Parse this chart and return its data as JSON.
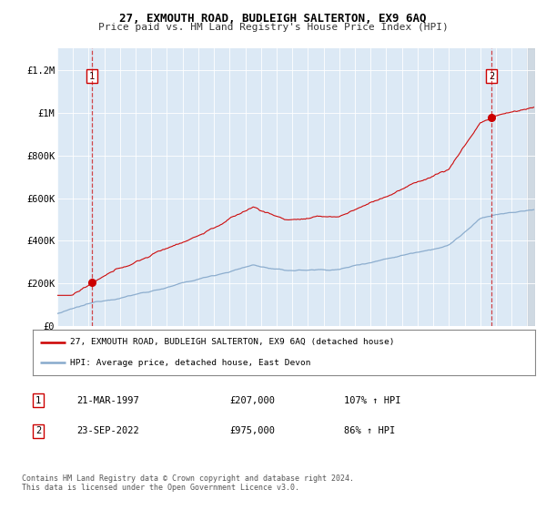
{
  "title": "27, EXMOUTH ROAD, BUDLEIGH SALTERTON, EX9 6AQ",
  "subtitle": "Price paid vs. HM Land Registry's House Price Index (HPI)",
  "bg_color": "#dce9f5",
  "sale1_x": 1997.22,
  "sale1_price": 207000,
  "sale1_label": "21-MAR-1997",
  "sale1_hpi_pct": "107% ↑ HPI",
  "sale2_x": 2022.72,
  "sale2_price": 975000,
  "sale2_label": "23-SEP-2022",
  "sale2_hpi_pct": "86% ↑ HPI",
  "legend_line1": "27, EXMOUTH ROAD, BUDLEIGH SALTERTON, EX9 6AQ (detached house)",
  "legend_line2": "HPI: Average price, detached house, East Devon",
  "footer": "Contains HM Land Registry data © Crown copyright and database right 2024.\nThis data is licensed under the Open Government Licence v3.0.",
  "sale_color": "#cc0000",
  "hpi_color": "#88aacc",
  "ylim": [
    0,
    1300000
  ],
  "yticks": [
    0,
    200000,
    400000,
    600000,
    800000,
    1000000,
    1200000
  ],
  "ytick_labels": [
    "£0",
    "£200K",
    "£400K",
    "£600K",
    "£800K",
    "£1M",
    "£1.2M"
  ],
  "xmin": 1995,
  "xmax": 2025.5
}
